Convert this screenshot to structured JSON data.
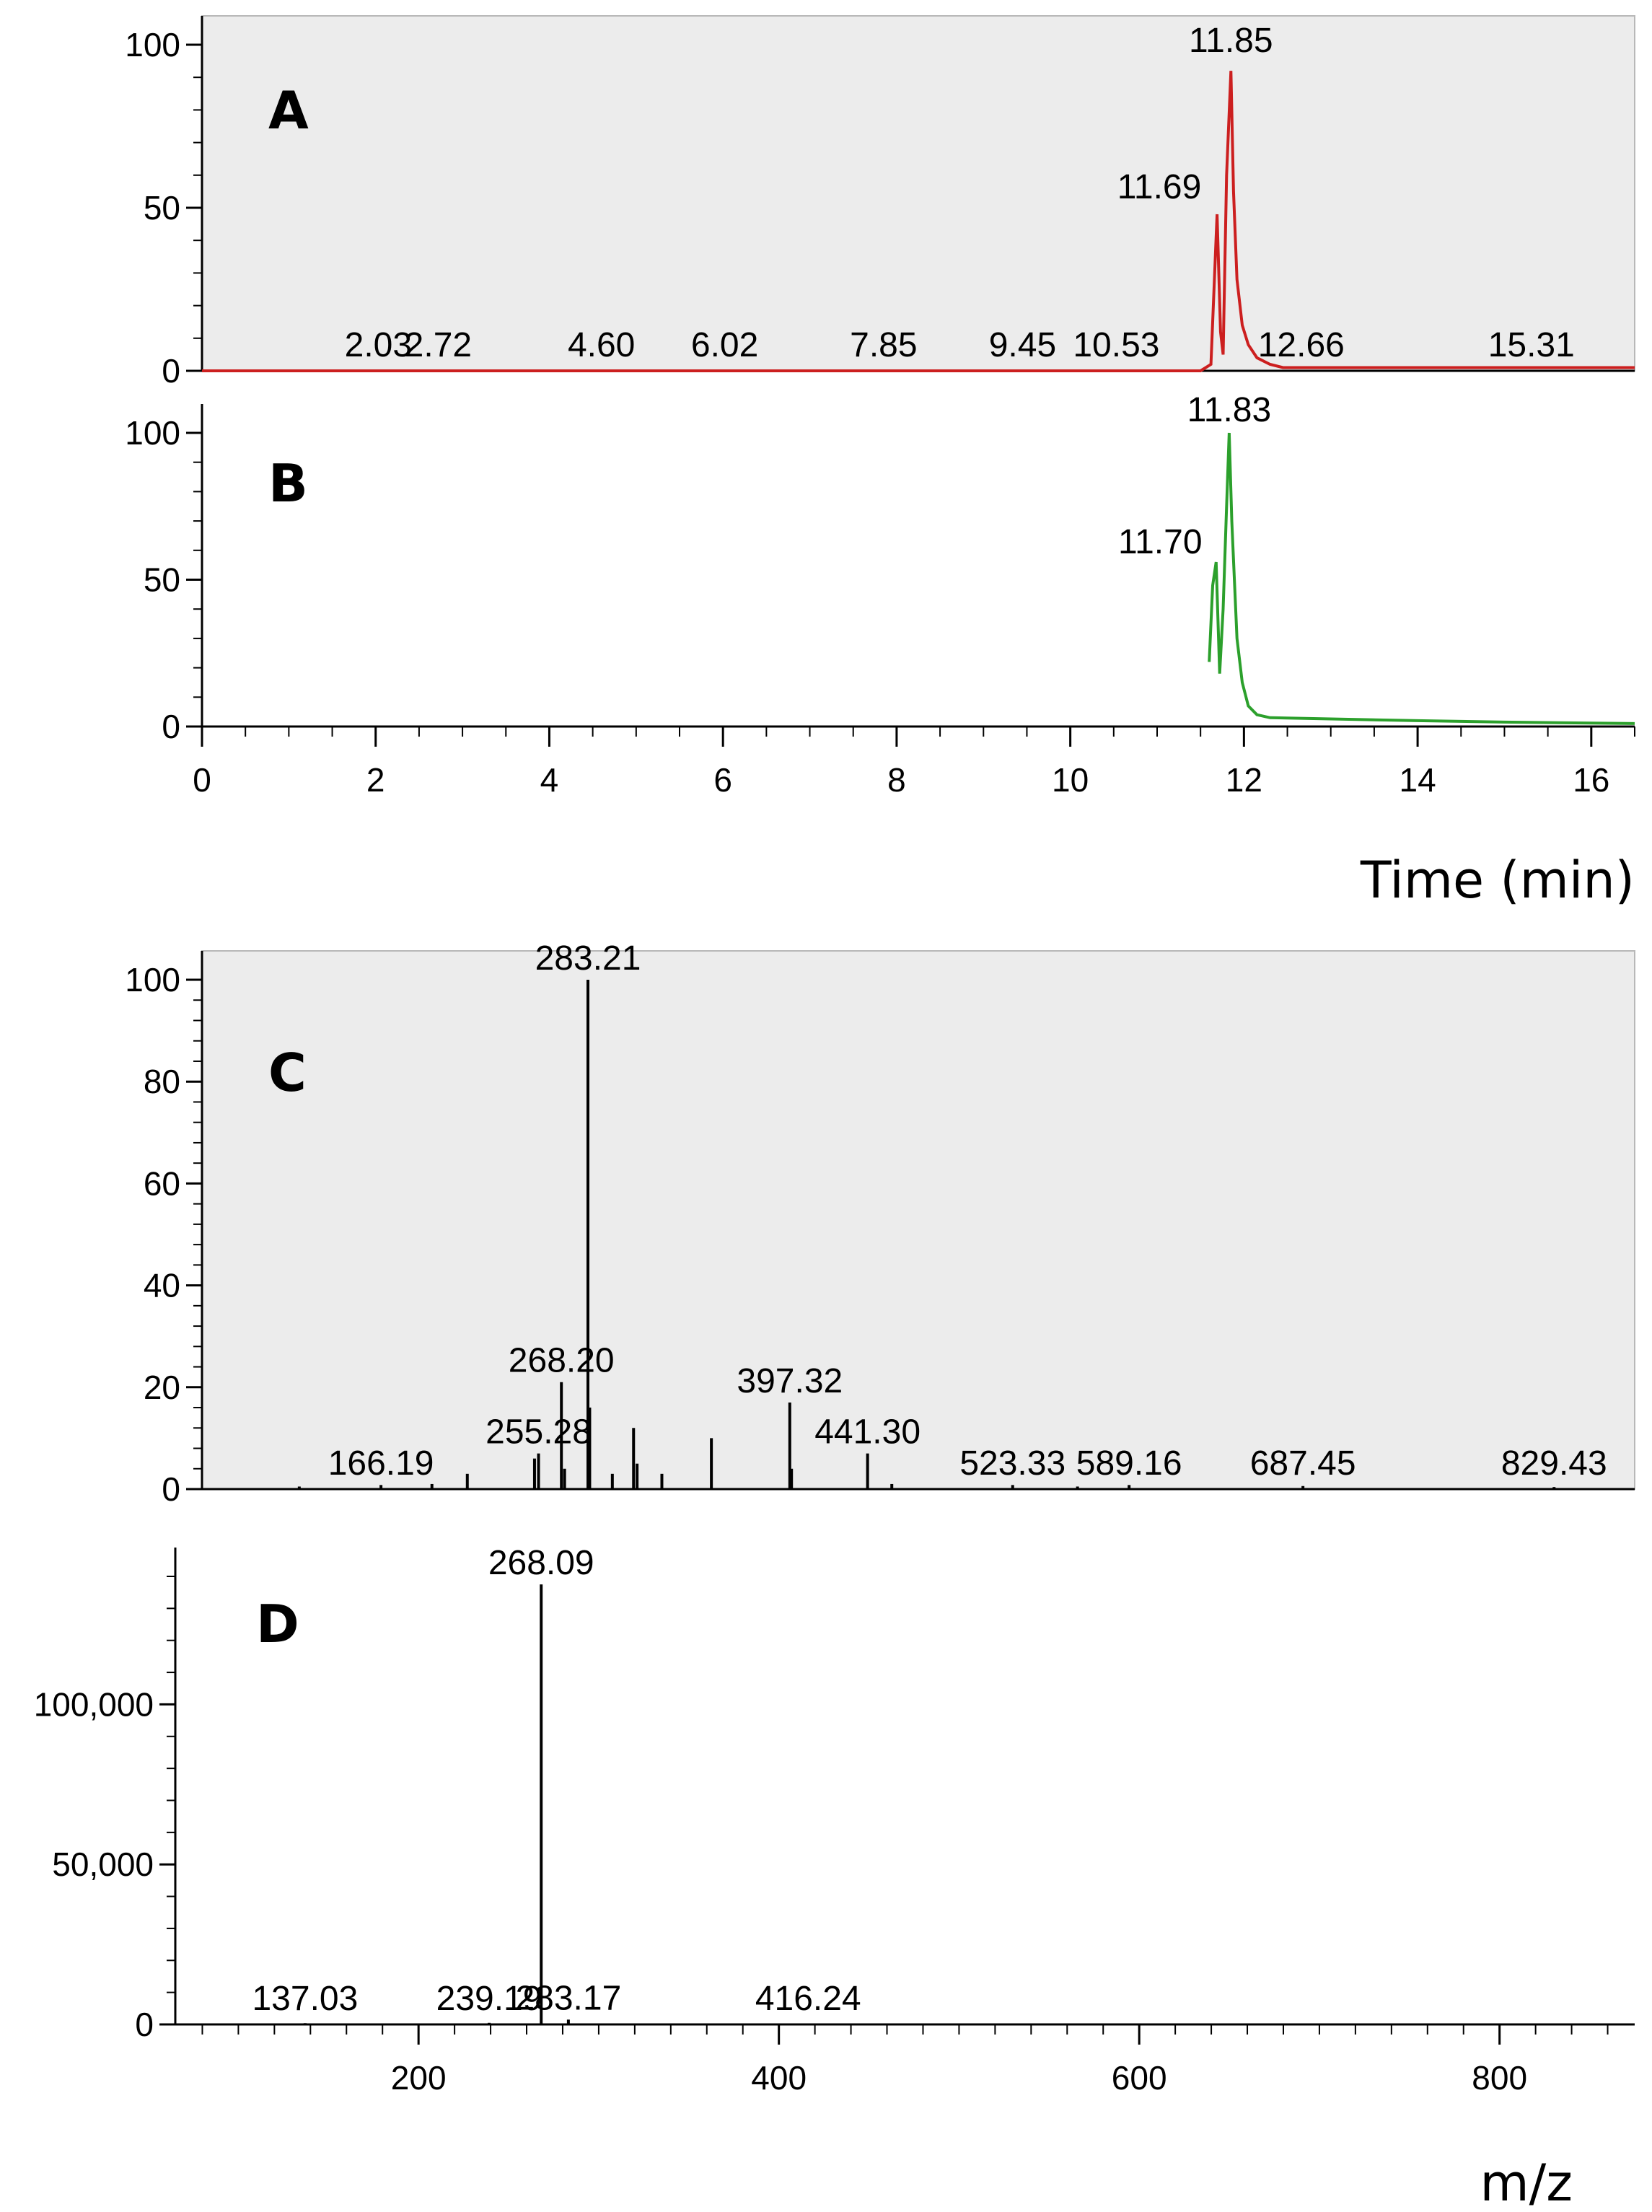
{
  "chart_data": [
    {
      "type": "line",
      "panel_label": "A",
      "ylim": [
        0,
        100
      ],
      "yticks": [
        0,
        50,
        100
      ],
      "xlim": [
        0,
        16.5
      ],
      "background": "#ececec",
      "line_color": "#cc1f1f",
      "series": [
        {
          "x": [
            0,
            11.5,
            11.62,
            11.69,
            11.73,
            11.76,
            11.8,
            11.85,
            11.88,
            11.92,
            11.98,
            12.05,
            12.15,
            12.3,
            12.45,
            16.5
          ],
          "y": [
            0,
            0,
            2,
            48,
            12,
            5,
            60,
            92,
            55,
            28,
            14,
            8,
            4,
            2,
            1,
            1
          ]
        }
      ],
      "peak_labels": [
        {
          "x": 2.03,
          "text": "2.03"
        },
        {
          "x": 2.72,
          "text": "2.72"
        },
        {
          "x": 4.6,
          "text": "4.60"
        },
        {
          "x": 6.02,
          "text": "6.02"
        },
        {
          "x": 7.85,
          "text": "7.85"
        },
        {
          "x": 9.45,
          "text": "9.45"
        },
        {
          "x": 10.53,
          "text": "10.53"
        },
        {
          "x": 11.69,
          "text": "11.69"
        },
        {
          "x": 11.85,
          "text": "11.85"
        },
        {
          "x": 12.66,
          "text": "12.66"
        },
        {
          "x": 15.31,
          "text": "15.31"
        }
      ]
    },
    {
      "type": "line",
      "panel_label": "B",
      "ylim": [
        0,
        100
      ],
      "yticks": [
        0,
        50,
        100
      ],
      "xlim": [
        0,
        16.5
      ],
      "xticks": [
        0,
        2,
        4,
        6,
        8,
        10,
        12,
        14,
        16
      ],
      "xlabel": "Time (min)",
      "line_color": "#2ca02c",
      "series": [
        {
          "x": [
            11.6,
            11.64,
            11.68,
            11.72,
            11.76,
            11.8,
            11.83,
            11.86,
            11.92,
            11.98,
            12.05,
            12.15,
            12.3,
            14.0,
            15.0,
            16.5
          ],
          "y": [
            22,
            48,
            56,
            18,
            40,
            75,
            100,
            70,
            30,
            15,
            7,
            4,
            3,
            2,
            1.5,
            1
          ]
        }
      ],
      "peak_labels": [
        {
          "x": 11.7,
          "text": "11.70"
        },
        {
          "x": 11.83,
          "text": "11.83"
        }
      ]
    },
    {
      "type": "bar",
      "panel_label": "C",
      "ylim": [
        0,
        100
      ],
      "yticks": [
        0,
        20,
        40,
        60,
        80,
        100
      ],
      "xlim": [
        65,
        875
      ],
      "background": "#ececec",
      "bar_color": "#000000",
      "peaks": [
        {
          "x": 120,
          "y": 0.5
        },
        {
          "x": 166.19,
          "y": 0.8
        },
        {
          "x": 195,
          "y": 1
        },
        {
          "x": 215,
          "y": 3
        },
        {
          "x": 253,
          "y": 6
        },
        {
          "x": 255.28,
          "y": 7
        },
        {
          "x": 268.2,
          "y": 21
        },
        {
          "x": 270,
          "y": 4
        },
        {
          "x": 283.21,
          "y": 100
        },
        {
          "x": 284.2,
          "y": 16
        },
        {
          "x": 297,
          "y": 3
        },
        {
          "x": 309,
          "y": 12
        },
        {
          "x": 311,
          "y": 5
        },
        {
          "x": 325,
          "y": 3
        },
        {
          "x": 353,
          "y": 10
        },
        {
          "x": 397.32,
          "y": 17
        },
        {
          "x": 398.3,
          "y": 4
        },
        {
          "x": 441.3,
          "y": 7
        },
        {
          "x": 455,
          "y": 1
        },
        {
          "x": 523.33,
          "y": 0.8
        },
        {
          "x": 560,
          "y": 0.5
        },
        {
          "x": 589.16,
          "y": 0.8
        },
        {
          "x": 687.45,
          "y": 0.6
        },
        {
          "x": 829.43,
          "y": 0.4
        }
      ],
      "peak_labels": [
        {
          "x": 166.19,
          "text": "166.19"
        },
        {
          "x": 255.28,
          "text": "255.28"
        },
        {
          "x": 268.2,
          "text": "268.20"
        },
        {
          "x": 283.21,
          "text": "283.21"
        },
        {
          "x": 397.32,
          "text": "397.32"
        },
        {
          "x": 441.3,
          "text": "441.30"
        },
        {
          "x": 523.33,
          "text": "523.33"
        },
        {
          "x": 589.16,
          "text": "589.16"
        },
        {
          "x": 687.45,
          "text": "687.45"
        },
        {
          "x": 829.43,
          "text": "829.43"
        }
      ]
    },
    {
      "type": "bar",
      "panel_label": "D",
      "ylim": [
        0,
        140000
      ],
      "yticks": [
        0,
        50000,
        100000
      ],
      "ytick_labels": [
        "0",
        "50,000",
        "100,000"
      ],
      "xlim": [
        65,
        875
      ],
      "xticks": [
        200,
        400,
        600,
        800
      ],
      "xlabel": "m/z",
      "bar_color": "#000000",
      "peaks": [
        {
          "x": 137.03,
          "y": 400
        },
        {
          "x": 239.19,
          "y": 500
        },
        {
          "x": 268.09,
          "y": 137500
        },
        {
          "x": 283.17,
          "y": 1500
        },
        {
          "x": 416.24,
          "y": 300
        }
      ],
      "peak_labels": [
        {
          "x": 137.03,
          "text": "137.03"
        },
        {
          "x": 239.19,
          "text": "239.19"
        },
        {
          "x": 268.09,
          "text": "268.09"
        },
        {
          "x": 283.17,
          "text": "283.17"
        },
        {
          "x": 416.24,
          "text": "416.24"
        }
      ]
    }
  ]
}
